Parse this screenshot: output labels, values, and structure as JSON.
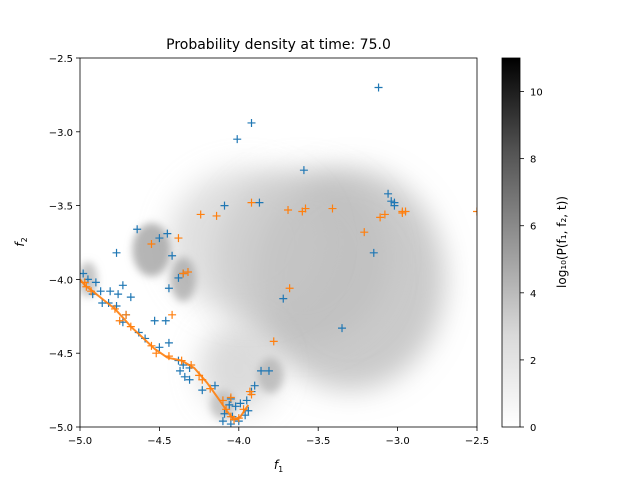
{
  "chart_data": {
    "type": "scatter",
    "title": "Probability density at time: 75.0",
    "xlabel_base": "f",
    "xlabel_sub": "1",
    "ylabel_base": "f",
    "ylabel_sub": "2",
    "xlim": [
      -5.0,
      -2.5
    ],
    "ylim": [
      -5.0,
      -2.5
    ],
    "xticks": [
      -5.0,
      -4.5,
      -4.0,
      -3.5,
      -3.0,
      -2.5
    ],
    "yticks": [
      -5.0,
      -4.5,
      -4.0,
      -3.5,
      -3.0,
      -2.5
    ],
    "xtick_labels": [
      "−5.0",
      "−4.5",
      "−4.0",
      "−3.5",
      "−3.0",
      "−2.5"
    ],
    "ytick_labels": [
      "−5.0",
      "−4.5",
      "−4.0",
      "−3.5",
      "−3.0",
      "−2.5"
    ],
    "grid": false,
    "colorbar": {
      "label": "log₁₀(P(f₁, f₂, t))",
      "range": [
        0,
        11
      ],
      "ticks": [
        0,
        2,
        4,
        6,
        8,
        10
      ],
      "tick_labels": [
        "0",
        "2",
        "4",
        "6",
        "8",
        "10"
      ],
      "colormap": "Greys"
    },
    "density_blobs": [
      {
        "x": -3.3,
        "y": -4.0,
        "rx": 0.6,
        "ry": 0.75,
        "level": 4.2
      },
      {
        "x": -3.6,
        "y": -3.85,
        "rx": 0.55,
        "ry": 0.6,
        "level": 3.0
      },
      {
        "x": -4.0,
        "y": -4.6,
        "rx": 0.25,
        "ry": 0.3,
        "level": 2.8
      },
      {
        "x": -3.95,
        "y": -3.75,
        "rx": 0.5,
        "ry": 0.5,
        "level": 2.4
      },
      {
        "x": -4.55,
        "y": -3.8,
        "rx": 0.12,
        "ry": 0.18,
        "level": 4.5
      },
      {
        "x": -4.35,
        "y": -4.0,
        "rx": 0.08,
        "ry": 0.15,
        "level": 4.0
      },
      {
        "x": -4.95,
        "y": -4.0,
        "rx": 0.06,
        "ry": 0.12,
        "level": 3.5
      },
      {
        "x": -3.8,
        "y": -4.65,
        "rx": 0.08,
        "ry": 0.12,
        "level": 3.5
      },
      {
        "x": -4.1,
        "y": -4.85,
        "rx": 0.08,
        "ry": 0.1,
        "level": 3.2
      }
    ],
    "series": [
      {
        "color": "#1f77b4",
        "marker": "+",
        "points": [
          [
            -3.12,
            -2.7
          ],
          [
            -3.92,
            -2.94
          ],
          [
            -4.01,
            -3.05
          ],
          [
            -3.59,
            -3.26
          ],
          [
            -3.06,
            -3.42
          ],
          [
            -3.04,
            -3.47
          ],
          [
            -3.02,
            -3.48
          ],
          [
            -3.02,
            -3.5
          ],
          [
            -3.87,
            -3.48
          ],
          [
            -4.09,
            -3.5
          ],
          [
            -4.64,
            -3.66
          ],
          [
            -4.45,
            -3.69
          ],
          [
            -4.5,
            -3.72
          ],
          [
            -4.77,
            -3.82
          ],
          [
            -3.15,
            -3.82
          ],
          [
            -4.42,
            -3.84
          ],
          [
            -4.35,
            -3.96
          ],
          [
            -4.38,
            -3.99
          ],
          [
            -4.98,
            -3.96
          ],
          [
            -4.95,
            -4.0
          ],
          [
            -4.9,
            -4.02
          ],
          [
            -4.73,
            -4.04
          ],
          [
            -4.44,
            -4.06
          ],
          [
            -4.87,
            -4.08
          ],
          [
            -4.81,
            -4.08
          ],
          [
            -4.76,
            -4.1
          ],
          [
            -4.92,
            -4.1
          ],
          [
            -4.68,
            -4.12
          ],
          [
            -3.72,
            -4.13
          ],
          [
            -4.82,
            -4.16
          ],
          [
            -4.77,
            -4.18
          ],
          [
            -4.86,
            -4.16
          ],
          [
            -4.71,
            -4.24
          ],
          [
            -4.46,
            -4.28
          ],
          [
            -4.53,
            -4.28
          ],
          [
            -4.73,
            -4.29
          ],
          [
            -3.35,
            -4.33
          ],
          [
            -4.63,
            -4.36
          ],
          [
            -4.59,
            -4.4
          ],
          [
            -4.44,
            -4.43
          ],
          [
            -4.5,
            -4.46
          ],
          [
            -4.38,
            -4.55
          ],
          [
            -4.35,
            -4.58
          ],
          [
            -4.37,
            -4.62
          ],
          [
            -4.31,
            -4.6
          ],
          [
            -3.86,
            -4.62
          ],
          [
            -4.34,
            -4.66
          ],
          [
            -4.31,
            -4.68
          ],
          [
            -3.81,
            -4.62
          ],
          [
            -4.23,
            -4.75
          ],
          [
            -4.15,
            -4.72
          ],
          [
            -3.9,
            -4.72
          ],
          [
            -3.92,
            -4.76
          ],
          [
            -4.05,
            -4.81
          ],
          [
            -4.06,
            -4.85
          ],
          [
            -3.95,
            -4.82
          ],
          [
            -4.02,
            -4.86
          ],
          [
            -4.09,
            -4.91
          ],
          [
            -3.94,
            -4.89
          ],
          [
            -3.96,
            -4.92
          ],
          [
            -4.04,
            -4.93
          ],
          [
            -4.1,
            -4.96
          ],
          [
            -4.0,
            -4.96
          ],
          [
            -4.05,
            -4.98
          ],
          [
            -3.99,
            -4.84
          ]
        ]
      },
      {
        "color": "#ff7f0e",
        "marker": "+",
        "points": [
          [
            -2.5,
            -3.54
          ],
          [
            -2.97,
            -3.54
          ],
          [
            -2.95,
            -3.54
          ],
          [
            -2.97,
            -3.55
          ],
          [
            -3.08,
            -3.56
          ],
          [
            -3.11,
            -3.58
          ],
          [
            -3.21,
            -3.68
          ],
          [
            -3.41,
            -3.52
          ],
          [
            -3.58,
            -3.52
          ],
          [
            -3.6,
            -3.54
          ],
          [
            -3.69,
            -3.53
          ],
          [
            -3.92,
            -3.48
          ],
          [
            -4.14,
            -3.57
          ],
          [
            -4.24,
            -3.56
          ],
          [
            -4.38,
            -3.72
          ],
          [
            -4.55,
            -3.76
          ],
          [
            -4.32,
            -3.95
          ],
          [
            -4.35,
            -3.96
          ],
          [
            -4.97,
            -4.02
          ],
          [
            -4.96,
            -4.05
          ],
          [
            -4.93,
            -4.08
          ],
          [
            -3.68,
            -4.06
          ],
          [
            -4.78,
            -4.2
          ],
          [
            -4.71,
            -4.24
          ],
          [
            -4.75,
            -4.28
          ],
          [
            -4.68,
            -4.32
          ],
          [
            -4.42,
            -4.24
          ],
          [
            -4.55,
            -4.45
          ],
          [
            -4.52,
            -4.5
          ],
          [
            -4.44,
            -4.52
          ],
          [
            -4.36,
            -4.55
          ],
          [
            -4.3,
            -4.58
          ],
          [
            -4.25,
            -4.65
          ],
          [
            -4.23,
            -4.68
          ],
          [
            -3.78,
            -4.42
          ],
          [
            -4.18,
            -4.74
          ],
          [
            -4.1,
            -4.82
          ],
          [
            -4.08,
            -4.88
          ],
          [
            -4.05,
            -4.93
          ],
          [
            -4.03,
            -4.95
          ],
          [
            -4.0,
            -4.94
          ],
          [
            -3.97,
            -4.88
          ],
          [
            -3.92,
            -4.78
          ],
          [
            -3.93,
            -4.76
          ],
          [
            -4.05,
            -4.8
          ]
        ],
        "path": [
          [
            -5.0,
            -4.0
          ],
          [
            -4.97,
            -4.04
          ],
          [
            -4.92,
            -4.08
          ],
          [
            -4.85,
            -4.14
          ],
          [
            -4.78,
            -4.2
          ],
          [
            -4.72,
            -4.27
          ],
          [
            -4.68,
            -4.32
          ],
          [
            -4.6,
            -4.4
          ],
          [
            -4.53,
            -4.47
          ],
          [
            -4.45,
            -4.53
          ],
          [
            -4.36,
            -4.55
          ],
          [
            -4.28,
            -4.6
          ],
          [
            -4.2,
            -4.7
          ],
          [
            -4.12,
            -4.82
          ],
          [
            -4.07,
            -4.9
          ],
          [
            -4.03,
            -4.95
          ],
          [
            -3.99,
            -4.93
          ],
          [
            -3.94,
            -4.85
          ]
        ]
      }
    ]
  }
}
